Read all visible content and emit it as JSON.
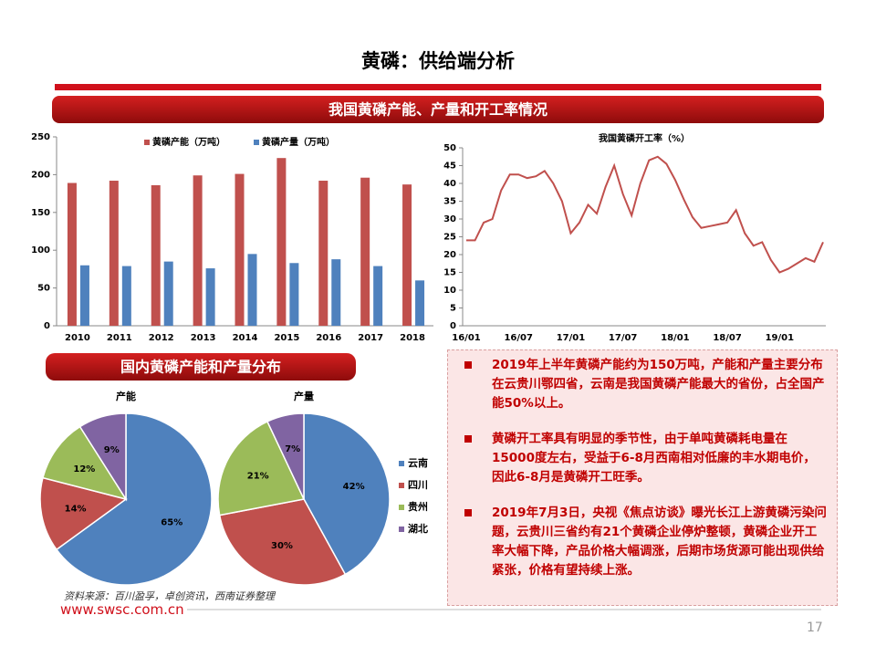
{
  "title": "黄磷：供给端分析",
  "section1": "我国黄磷产能、产量和开工率情况",
  "section2": "国内黄磷产能和产量分布",
  "bullets": [
    "2019年上半年黄磷产能约为150万吨，产能和产量主要分布在云贵川鄂四省，云南是我国黄磷产能最大的省份，占全国产能50%以上。",
    "黄磷开工率具有明显的季节性，由于单吨黄磷耗电量在15000度左右，受益于6-8月西南相对低廉的丰水期电价，因此6-8月是黄磷开工旺季。",
    "2019年7月3日，央视《焦点访谈》曝光长江上游黄磷污染问题，云贵川三省约有21个黄磷企业停炉整顿，黄磷企业开工率大幅下降，产品价格大幅调涨，后期市场货源可能出现供给紧张，价格有望持续上涨。"
  ],
  "source": "资料来源：百川盈孚，卓创资讯，西南证券整理",
  "url": "www.swsc.com.cn",
  "page_number": "17",
  "chart_data": [
    {
      "type": "bar",
      "categories": [
        "2010",
        "2011",
        "2012",
        "2013",
        "2014",
        "2015",
        "2016",
        "2017",
        "2018"
      ],
      "series": [
        {
          "name": "黄磷产能（万吨）",
          "color": "#c0504d",
          "values": [
            189,
            192,
            186,
            199,
            201,
            222,
            192,
            196,
            187
          ]
        },
        {
          "name": "黄磷产量（万吨）",
          "color": "#4f81bd",
          "values": [
            80,
            79,
            85,
            76,
            95,
            83,
            88,
            79,
            60
          ]
        }
      ],
      "ylim": [
        0,
        250
      ],
      "yticks": [
        0,
        50,
        100,
        150,
        200,
        250
      ]
    },
    {
      "type": "line",
      "title": "我国黄磷开工率（%）",
      "color": "#c0504d",
      "x": [
        "16/01",
        null,
        null,
        null,
        null,
        null,
        "16/07",
        null,
        null,
        null,
        null,
        null,
        "17/01",
        null,
        null,
        null,
        null,
        null,
        "17/07",
        null,
        null,
        null,
        null,
        null,
        "18/01",
        null,
        null,
        null,
        null,
        null,
        "18/07",
        null,
        null,
        null,
        null,
        null,
        "19/01",
        null,
        null,
        null,
        null,
        null
      ],
      "values": [
        24,
        24,
        29,
        30,
        38,
        42.5,
        42.5,
        41.5,
        42,
        43.5,
        40,
        35,
        26,
        29,
        34,
        31.5,
        39,
        45,
        37,
        31,
        40,
        46.5,
        47.5,
        45.5,
        41,
        35.5,
        30.5,
        27.5,
        28,
        28.5,
        29,
        32.5,
        26,
        22.5,
        23.5,
        18.5,
        15,
        16,
        17.5,
        19,
        18,
        23.5
      ],
      "ylim": [
        0,
        50
      ],
      "yticks": [
        0,
        5,
        10,
        15,
        20,
        25,
        30,
        35,
        40,
        45,
        50
      ]
    },
    {
      "type": "pie",
      "categories": [
        "云南",
        "四川",
        "贵州",
        "湖北"
      ],
      "colors": [
        "#4f81bd",
        "#c0504d",
        "#9bbb59",
        "#8064a2"
      ],
      "series": [
        {
          "name": "产能",
          "values": [
            65,
            14,
            12,
            9
          ],
          "value_labels": [
            "65%",
            "14%",
            "12%",
            "9%"
          ]
        },
        {
          "name": "产量",
          "values": [
            42,
            30,
            21,
            7
          ],
          "value_labels": [
            "42%",
            "30%",
            "21%",
            "7%"
          ]
        }
      ]
    }
  ]
}
